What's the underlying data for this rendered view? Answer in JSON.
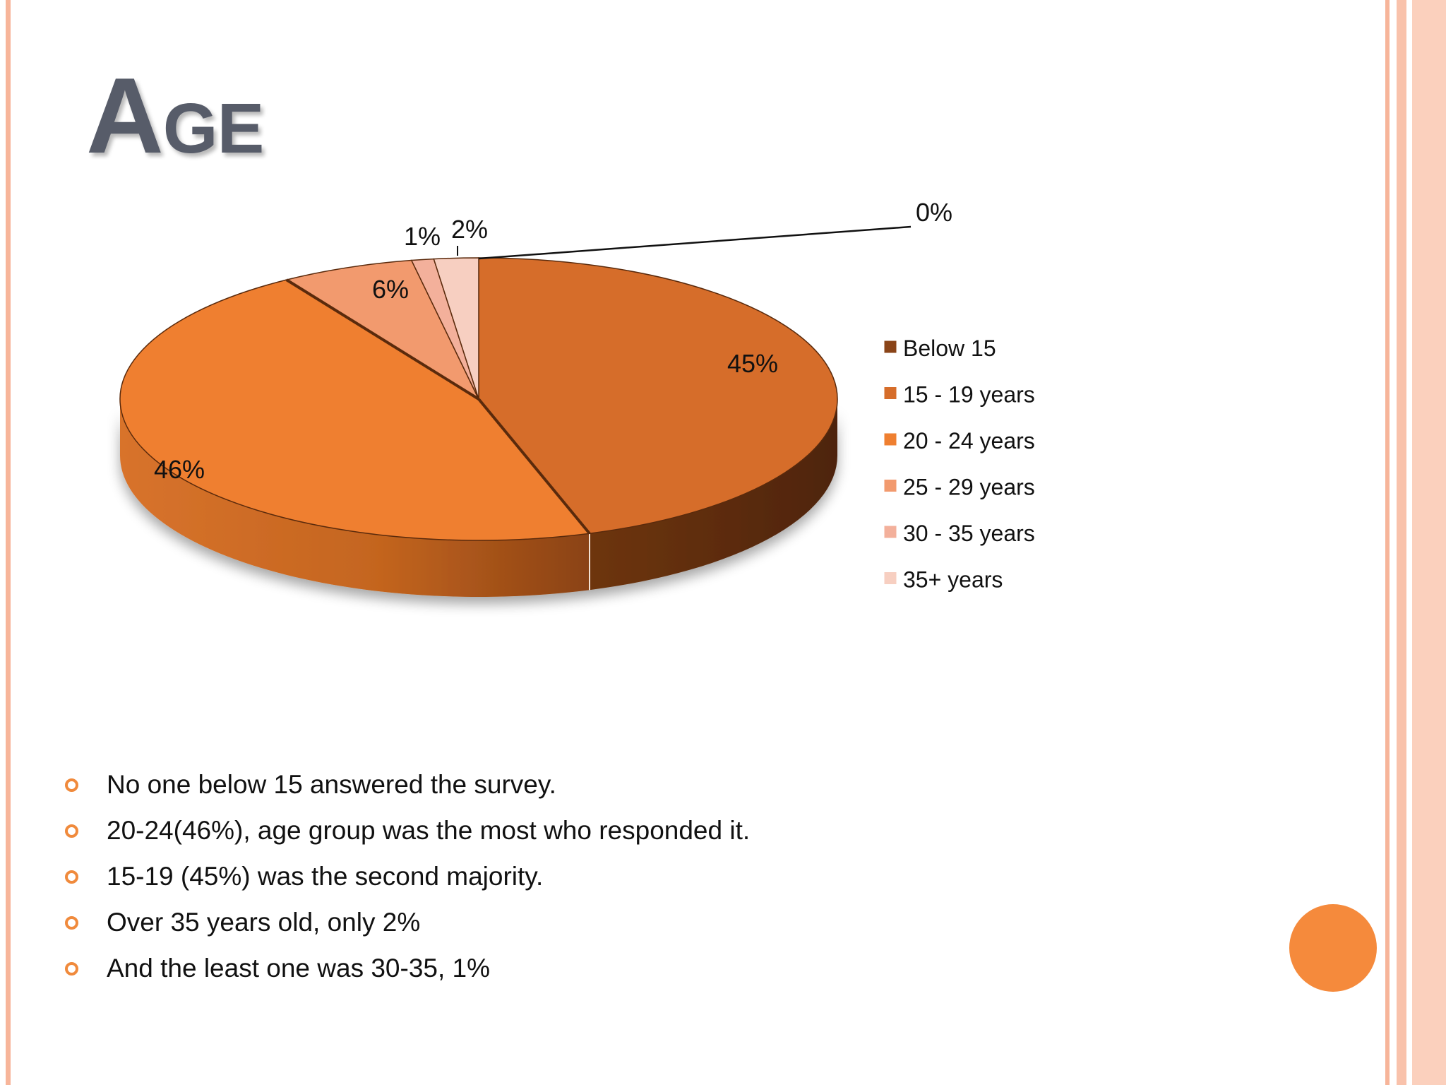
{
  "slide": {
    "title": "Age",
    "accent_color": "#f58a3c",
    "title_color": "#575c69",
    "border_color": "#f7b59a"
  },
  "chart_data": {
    "type": "pie",
    "style": "3d",
    "title": "",
    "legend_position": "right",
    "categories": [
      "Below 15",
      "15 - 19 years",
      "20 - 24 years",
      "25 - 29 years",
      "30 - 35 years",
      "35+ years"
    ],
    "values": [
      0,
      45,
      46,
      6,
      1,
      2
    ],
    "labels": [
      "0%",
      "45%",
      "46%",
      "6%",
      "1%",
      "2%"
    ],
    "colors": [
      "#8a4418",
      "#d66d2a",
      "#ef7f30",
      "#f29a6e",
      "#f3b09b",
      "#f7cfc1"
    ]
  },
  "bullets": [
    "No one below 15 answered the survey.",
    "20-24(46%), age group was the most who responded it.",
    "15-19 (45%) was the second majority.",
    "Over 35 years old, only 2%",
    "And the least one was 30-35, 1%"
  ]
}
